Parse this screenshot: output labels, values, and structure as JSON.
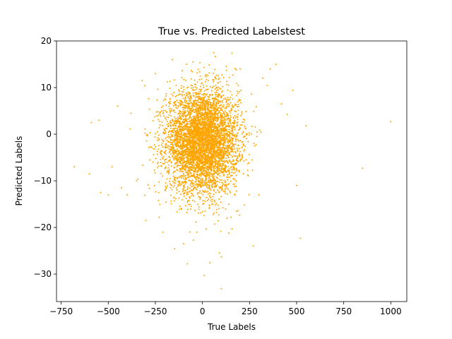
{
  "chart_data": {
    "type": "scatter",
    "title": "True vs. Predicted Labelstest",
    "xlabel": "True Labels",
    "ylabel": "Predicted Labels",
    "xlim": [
      -775,
      1085
    ],
    "ylim": [
      -35.9,
      20
    ],
    "xticks": [
      -750,
      -500,
      -250,
      0,
      250,
      500,
      750,
      1000
    ],
    "yticks": [
      -30,
      -20,
      -10,
      0,
      10,
      20
    ],
    "grid": false,
    "legend": "none",
    "marker_color": "#FFA500",
    "series": [
      {
        "cluster": {
          "count": 5200,
          "x_mean": 0,
          "x_sd": 95,
          "y_mean": -1.5,
          "y_sd": 5.5
        },
        "outliers": [
          [
            -680,
            -7
          ],
          [
            -600,
            -8.5
          ],
          [
            -590,
            2.5
          ],
          [
            -550,
            3
          ],
          [
            -540,
            -12.5
          ],
          [
            -500,
            -13
          ],
          [
            -480,
            -7
          ],
          [
            -430,
            -11.5
          ],
          [
            -400,
            -13
          ],
          [
            -350,
            -10
          ],
          [
            1000,
            2.7
          ],
          [
            850,
            -7.3
          ],
          [
            520,
            -22.3
          ],
          [
            500,
            -11
          ],
          [
            550,
            1.8
          ],
          [
            480,
            9.4
          ],
          [
            390,
            15
          ],
          [
            360,
            14
          ],
          [
            270,
            -24
          ],
          [
            180,
            13.8
          ],
          [
            -160,
            16
          ],
          [
            -50,
            15.5
          ],
          [
            60,
            17.5
          ],
          [
            -100,
            -23.5
          ],
          [
            -80,
            -27.8
          ],
          [
            40,
            -27.6
          ],
          [
            90,
            -25.5
          ],
          [
            100,
            -26.3
          ],
          [
            100,
            -33.1
          ],
          [
            10,
            -30.3
          ],
          [
            -30,
            -21
          ],
          [
            140,
            -21.2
          ],
          [
            -230,
            -17.8
          ],
          [
            -300,
            -18.5
          ],
          [
            -210,
            -21
          ],
          [
            300,
            -13
          ],
          [
            320,
            12
          ],
          [
            420,
            6.5
          ],
          [
            450,
            4.2
          ],
          [
            -380,
            4.5
          ],
          [
            -450,
            6
          ],
          [
            -320,
            11.5
          ],
          [
            -250,
            13
          ],
          [
            200,
            14
          ]
        ]
      }
    ]
  }
}
